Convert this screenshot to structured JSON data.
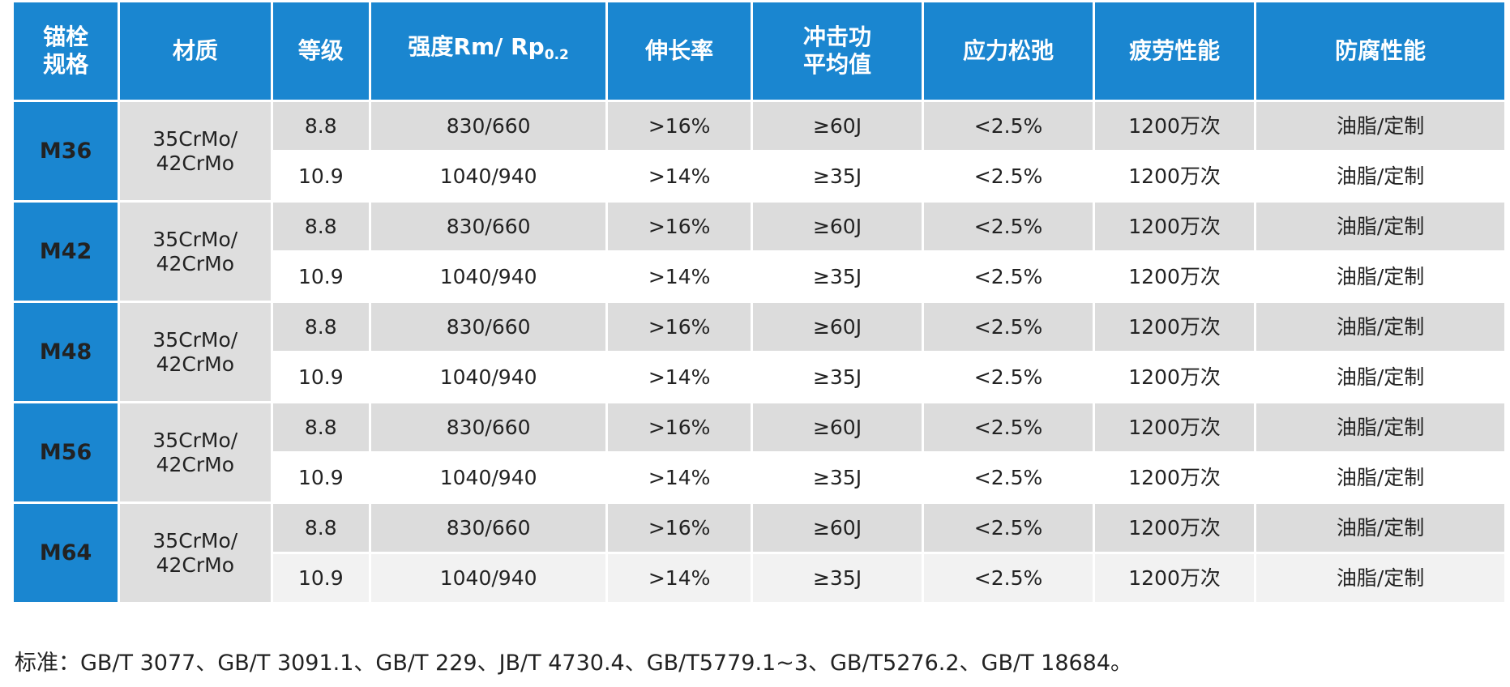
{
  "table": {
    "headers": [
      "锚栓\n规格",
      "材质",
      "等级",
      "强度Rm/ Rp",
      "伸长率",
      "冲击功\n平均值",
      "应力松弛",
      "疲劳性能",
      "防腐性能"
    ],
    "strength_subscript": "0.2",
    "groups": [
      {
        "spec": "M36",
        "material": "35CrMo/\n42CrMo",
        "rows": [
          [
            "8.8",
            "830/660",
            ">16%",
            "≥60J",
            "<2.5%",
            "1200万次",
            "油脂/定制"
          ],
          [
            "10.9",
            "1040/940",
            ">14%",
            "≥35J",
            "<2.5%",
            "1200万次",
            "油脂/定制"
          ]
        ]
      },
      {
        "spec": "M42",
        "material": "35CrMo/\n42CrMo",
        "rows": [
          [
            "8.8",
            "830/660",
            ">16%",
            "≥60J",
            "<2.5%",
            "1200万次",
            "油脂/定制"
          ],
          [
            "10.9",
            "1040/940",
            ">14%",
            "≥35J",
            "<2.5%",
            "1200万次",
            "油脂/定制"
          ]
        ]
      },
      {
        "spec": "M48",
        "material": "35CrMo/\n42CrMo",
        "rows": [
          [
            "8.8",
            "830/660",
            ">16%",
            "≥60J",
            "<2.5%",
            "1200万次",
            "油脂/定制"
          ],
          [
            "10.9",
            "1040/940",
            ">14%",
            "≥35J",
            "<2.5%",
            "1200万次",
            "油脂/定制"
          ]
        ]
      },
      {
        "spec": "M56",
        "material": "35CrMo/\n42CrMo",
        "rows": [
          [
            "8.8",
            "830/660",
            ">16%",
            "≥60J",
            "<2.5%",
            "1200万次",
            "油脂/定制"
          ],
          [
            "10.9",
            "1040/940",
            ">14%",
            "≥35J",
            "<2.5%",
            "1200万次",
            "油脂/定制"
          ]
        ]
      },
      {
        "spec": "M64",
        "material": "35CrMo/\n42CrMo",
        "rows": [
          [
            "8.8",
            "830/660",
            ">16%",
            "≥60J",
            "<2.5%",
            "1200万次",
            "油脂/定制"
          ],
          [
            "10.9",
            "1040/940",
            ">14%",
            "≥35J",
            "<2.5%",
            "1200万次",
            "油脂/定制"
          ]
        ]
      }
    ]
  },
  "note": "标准：GB/T 3077、GB/T 3091.1、GB/T 229、JB/T 4730.4、GB/T5779.1~3、GB/T5276.2、GB/T 18684。",
  "colors": {
    "header_blue": "#1a86d0",
    "row_grey": "#dcdcdc",
    "material_grey": "#dedede"
  }
}
